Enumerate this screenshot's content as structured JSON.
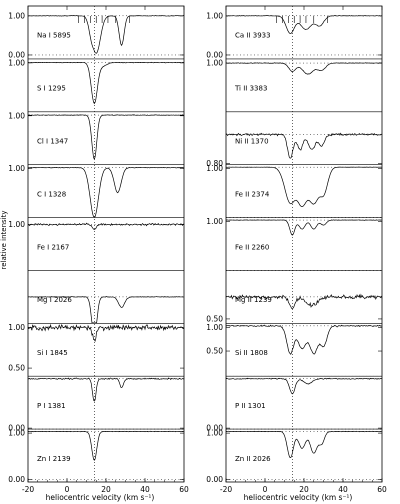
{
  "chart_data": {
    "type": "line",
    "xlabel": "heliocentric velocity (km s⁻¹)",
    "ylabel": "relative intensity",
    "xlim": [
      -20,
      60
    ],
    "x_ticks": [
      -20,
      0,
      20,
      40,
      60
    ],
    "reference_velocity": 14,
    "component_marks": [
      6,
      9,
      12,
      15,
      18,
      21,
      25,
      32
    ],
    "columns": [
      {
        "panels": [
          {
            "label": "Na I 5895",
            "ylim": [
              -0.1,
              1.25
            ],
            "y_ticks": [
              "1.00",
              "0.00"
            ],
            "noise": 0.01,
            "lines": [
              {
                "v": 15,
                "d": 0.95,
                "w": 3
              },
              {
                "v": 13,
                "d": 0.4,
                "w": 2
              },
              {
                "v": 28,
                "d": 0.75,
                "w": 1.8
              }
            ]
          },
          {
            "label": "S I 1295",
            "ylim": [
              0.6,
              1.03
            ],
            "y_ticks": [
              "1.00"
            ],
            "noise": 0.003,
            "lines": [
              {
                "v": 14,
                "d": 0.33,
                "w": 2.2
              },
              {
                "v": 18,
                "d": 0.03,
                "w": 3
              }
            ]
          },
          {
            "label": "Cl I 1347",
            "ylim": [
              0.55,
              1.03
            ],
            "y_ticks": [
              "1.00"
            ],
            "noise": 0.004,
            "lines": [
              {
                "v": 14,
                "d": 0.4,
                "w": 1.8
              }
            ]
          },
          {
            "label": "C I 1328",
            "ylim": [
              0.5,
              1.03
            ],
            "y_ticks": [
              "1.00"
            ],
            "noise": 0.004,
            "lines": [
              {
                "v": 14,
                "d": 0.5,
                "w": 3
              },
              {
                "v": 26,
                "d": 0.25,
                "w": 2.5
              }
            ]
          },
          {
            "label": "Fe I 2167",
            "ylim": [
              0.8,
              1.03
            ],
            "y_ticks": [
              "1.00"
            ],
            "noise": 0.006,
            "lines": [
              {
                "v": 14,
                "d": 0.02,
                "w": 1.5
              }
            ]
          },
          {
            "label": "Mg I 2026",
            "ylim": [
              0.5,
              1.5
            ],
            "y_ticks": [],
            "noise": 0.008,
            "lines": [
              {
                "v": 14,
                "d": 0.8,
                "w": 1.8
              },
              {
                "v": 28,
                "d": 0.2,
                "w": 2.2
              }
            ]
          },
          {
            "label": "Si I 1845",
            "ylim": [
              0.4,
              1.05
            ],
            "y_ticks": [
              "1.00",
              "0.50"
            ],
            "noise": 0.05,
            "lines": [
              {
                "v": 14,
                "d": 0.15,
                "w": 1.5
              }
            ]
          },
          {
            "label": "P I 1381",
            "ylim": [
              0.0,
              1.05
            ],
            "y_ticks": [
              "0.00"
            ],
            "noise": 0.02,
            "lines": [
              {
                "v": 14,
                "d": 0.45,
                "w": 1.3
              },
              {
                "v": 28,
                "d": 0.18,
                "w": 1.3
              }
            ]
          },
          {
            "label": "Zn I 2139",
            "ylim": [
              -0.05,
              1.05
            ],
            "y_ticks": [
              "1.00",
              "0.00"
            ],
            "noise": 0.008,
            "lines": [
              {
                "v": 14,
                "d": 0.6,
                "w": 1.8
              }
            ]
          }
        ]
      },
      {
        "panels": [
          {
            "label": "Ca II 3933",
            "ylim": [
              -0.1,
              1.25
            ],
            "y_ticks": [
              "1.00",
              "0.00"
            ],
            "noise": 0.01,
            "lines": [
              {
                "v": 13,
                "d": 0.45,
                "w": 3
              },
              {
                "v": 21,
                "d": 0.35,
                "w": 4
              },
              {
                "v": 28,
                "d": 0.25,
                "w": 3
              }
            ]
          },
          {
            "label": "Ti II 3383",
            "ylim": [
              0.65,
              1.03
            ],
            "y_ticks": [
              "1.00"
            ],
            "noise": 0.003,
            "lines": [
              {
                "v": 14,
                "d": 0.06,
                "w": 2.5
              },
              {
                "v": 22,
                "d": 0.08,
                "w": 4
              },
              {
                "v": 29,
                "d": 0.05,
                "w": 3
              }
            ]
          },
          {
            "label": "Ni II 1370",
            "ylim": [
              0.8,
              1.15
            ],
            "y_ticks": [
              "0.80"
            ],
            "noise": 0.01,
            "lines": [
              {
                "v": 13,
                "d": 0.16,
                "w": 2
              },
              {
                "v": 18,
                "d": 0.1,
                "w": 2
              },
              {
                "v": 24,
                "d": 0.1,
                "w": 2.5
              },
              {
                "v": 29,
                "d": 0.08,
                "w": 2
              }
            ]
          },
          {
            "label": "Fe II 2374",
            "ylim": [
              0.0,
              1.05
            ],
            "y_ticks": [
              "1.00"
            ],
            "noise": 0.004,
            "lines": [
              {
                "v": 13,
                "d": 0.7,
                "w": 4
              },
              {
                "v": 19,
                "d": 0.75,
                "w": 4
              },
              {
                "v": 25,
                "d": 0.7,
                "w": 4
              },
              {
                "v": 30,
                "d": 0.5,
                "w": 3
              }
            ]
          },
          {
            "label": "Fe II 2260",
            "ylim": [
              0.0,
              1.05
            ],
            "y_ticks": [
              "1.00"
            ],
            "noise": 0.006,
            "lines": [
              {
                "v": 14,
                "d": 0.3,
                "w": 1.8
              },
              {
                "v": 19,
                "d": 0.18,
                "w": 2.2
              },
              {
                "v": 25,
                "d": 0.18,
                "w": 2.2
              },
              {
                "v": 30,
                "d": 0.1,
                "w": 2
              }
            ]
          },
          {
            "label": "Mg II 1239",
            "ylim": [
              0.4,
              1.6
            ],
            "y_ticks": [
              "0.50"
            ],
            "noise": 0.06,
            "lines": [
              {
                "v": 14,
                "d": 0.25,
                "w": 2
              },
              {
                "v": 24,
                "d": 0.2,
                "w": 4
              }
            ]
          },
          {
            "label": "Si II 1808",
            "ylim": [
              0.0,
              1.05
            ],
            "y_ticks": [
              "1.00",
              "0.50"
            ],
            "noise": 0.02,
            "lines": [
              {
                "v": 13,
                "d": 0.55,
                "w": 2.5
              },
              {
                "v": 19,
                "d": 0.45,
                "w": 3
              },
              {
                "v": 25,
                "d": 0.55,
                "w": 3
              },
              {
                "v": 30,
                "d": 0.4,
                "w": 2.5
              }
            ]
          },
          {
            "label": "P II 1301",
            "ylim": [
              0.0,
              1.05
            ],
            "y_ticks": [
              "0.00"
            ],
            "noise": 0.015,
            "lines": [
              {
                "v": 14,
                "d": 0.3,
                "w": 2
              },
              {
                "v": 22,
                "d": 0.1,
                "w": 3
              }
            ]
          },
          {
            "label": "Zn II 2026",
            "ylim": [
              -0.05,
              1.05
            ],
            "y_ticks": [
              "1.00",
              "0.00"
            ],
            "noise": 0.008,
            "lines": [
              {
                "v": 13,
                "d": 0.55,
                "w": 2.2
              },
              {
                "v": 19,
                "d": 0.35,
                "w": 2.5
              },
              {
                "v": 25,
                "d": 0.45,
                "w": 2.5
              },
              {
                "v": 29,
                "d": 0.25,
                "w": 2
              }
            ]
          }
        ]
      }
    ]
  }
}
